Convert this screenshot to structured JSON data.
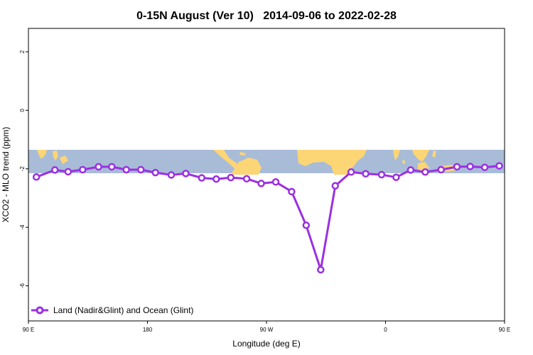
{
  "chart_data": {
    "type": "line",
    "title": "0-15N August (Ver 10)   2014-09-06 to 2022-02-28",
    "xlabel": "Longitude (deg E)",
    "ylabel": "XCO2 - MLO trend (ppm)",
    "xlim": [
      90,
      450
    ],
    "ylim": [
      -7.2,
      2.8
    ],
    "x_ticks": [
      {
        "value": 90,
        "label": "90 E"
      },
      {
        "value": 180,
        "label": "180"
      },
      {
        "value": 270,
        "label": "90 W"
      },
      {
        "value": 360,
        "label": "0"
      },
      {
        "value": 450,
        "label": "90 E"
      },
      {
        "value": 540,
        "label": "180"
      }
    ],
    "y_ticks": [
      {
        "value": 2,
        "label": "2"
      },
      {
        "value": 0,
        "label": "0"
      },
      {
        "value": -2,
        "label": "-2"
      },
      {
        "value": -4,
        "label": "-4"
      },
      {
        "value": -6,
        "label": "-6"
      }
    ],
    "grid": false,
    "legend": {
      "position": "bottom-left"
    },
    "map_strip": {
      "y_range": [
        -2.15,
        -1.35
      ],
      "ocean_color": "#a8bcd8",
      "land_color": "#fcd575"
    },
    "series": [
      {
        "name": "Land (Nadir&Glint) and Ocean (Glint)",
        "color": "#9b30e0",
        "x": [
          96,
          110,
          120,
          131,
          143,
          153,
          164,
          175,
          186,
          198,
          209,
          221,
          232,
          243,
          255,
          266,
          277,
          289,
          300,
          311,
          322,
          334,
          345,
          357,
          368,
          379,
          390,
          402,
          414,
          424,
          435,
          446
        ],
        "y": [
          -2.28,
          -2.04,
          -2.1,
          -2.03,
          -1.93,
          -1.93,
          -2.03,
          -2.03,
          -2.13,
          -2.21,
          -2.16,
          -2.31,
          -2.35,
          -2.3,
          -2.34,
          -2.5,
          -2.45,
          -2.78,
          -3.93,
          -5.45,
          -2.58,
          -2.11,
          -2.17,
          -2.2,
          -2.29,
          -2.04,
          -2.11,
          -2.03,
          -1.93,
          -1.92,
          -1.95,
          -1.9
        ]
      }
    ]
  }
}
